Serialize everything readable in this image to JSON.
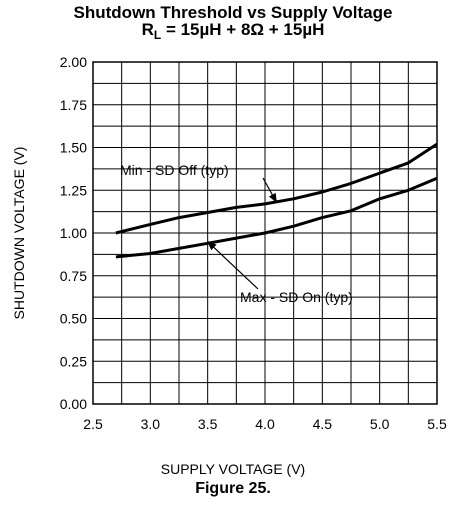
{
  "header": {
    "title_line1": "Shutdown Threshold vs Supply Voltage",
    "title_line2_prefix": "R",
    "title_line2_sub": "L",
    "title_line2_rest": " = 15µH + 8Ω + 15µH"
  },
  "figure_label": "Figure 25.",
  "chart_data": {
    "type": "line",
    "title": "Shutdown Threshold vs Supply Voltage",
    "subtitle": "RL = 15µH + 8Ω + 15µH",
    "xlabel": "SUPPLY VOLTAGE (V)",
    "ylabel": "SHUTDOWN VOLTAGE (V)",
    "xlim": [
      2.5,
      5.5
    ],
    "ylim": [
      0.0,
      2.0
    ],
    "x_ticks": [
      "2.5",
      "3.0",
      "3.5",
      "4.0",
      "4.5",
      "5.0",
      "5.5"
    ],
    "y_ticks": [
      "0.00",
      "0.25",
      "0.50",
      "0.75",
      "1.00",
      "1.25",
      "1.50",
      "1.75",
      "2.00"
    ],
    "grid": true,
    "series": [
      {
        "name": "Min - SD Off (typ)",
        "x": [
          2.7,
          3.0,
          3.25,
          3.5,
          3.75,
          4.0,
          4.25,
          4.5,
          4.75,
          5.0,
          5.25,
          5.5
        ],
        "y": [
          1.0,
          1.05,
          1.09,
          1.12,
          1.15,
          1.17,
          1.2,
          1.24,
          1.29,
          1.35,
          1.41,
          1.52
        ]
      },
      {
        "name": "Max - SD On (typ)",
        "x": [
          2.7,
          3.0,
          3.25,
          3.5,
          3.75,
          4.0,
          4.25,
          4.5,
          4.75,
          5.0,
          5.25,
          5.5
        ],
        "y": [
          0.86,
          0.88,
          0.91,
          0.94,
          0.97,
          1.0,
          1.04,
          1.09,
          1.13,
          1.2,
          1.25,
          1.32
        ]
      }
    ],
    "annotations": [
      {
        "text": "Min - SD Off (typ)",
        "target_x": 4.1,
        "target_y": 1.18
      },
      {
        "text": "Max - SD On (typ)",
        "target_x": 3.5,
        "target_y": 0.95
      }
    ]
  }
}
